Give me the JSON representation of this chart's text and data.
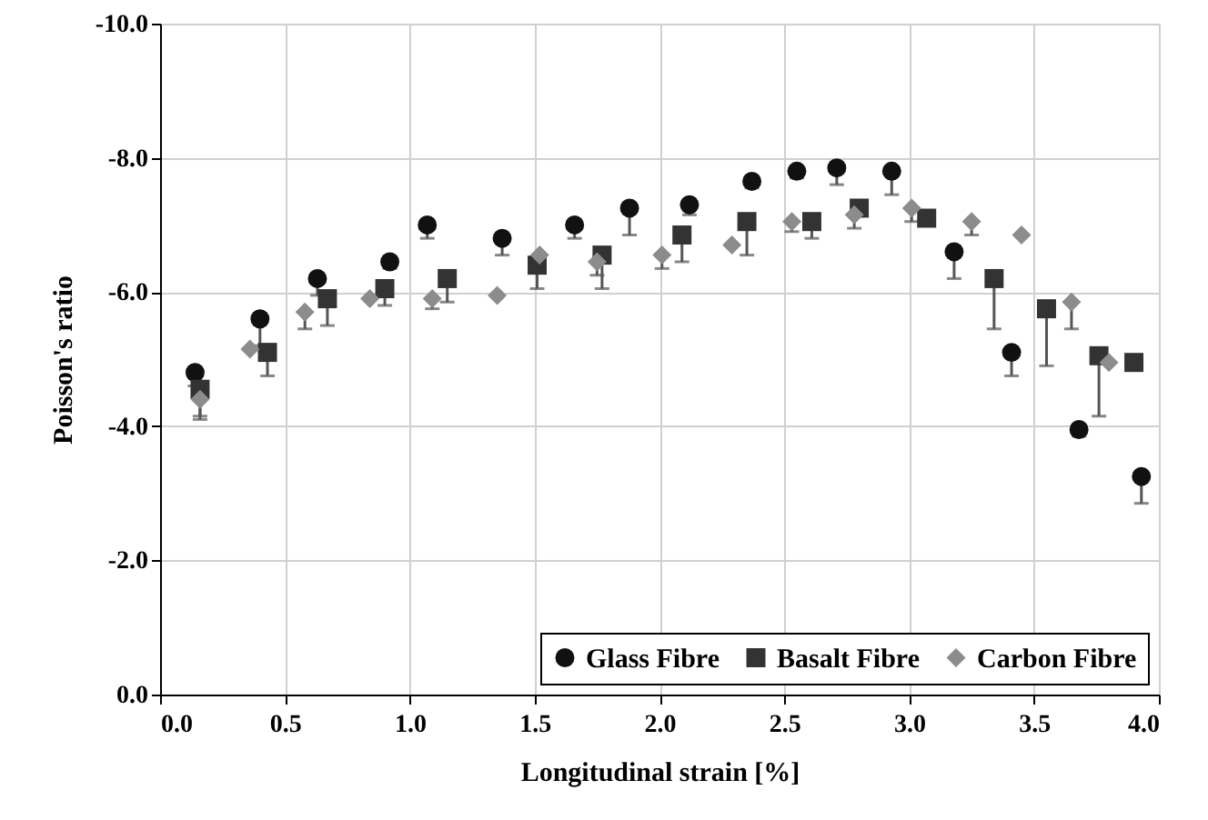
{
  "chart_data": {
    "type": "scatter",
    "xlabel": "Longitudinal strain [%]",
    "ylabel": "Poisson's ratio",
    "xlim": [
      0,
      4
    ],
    "xticks": [
      {
        "value": 0,
        "label": "0.0"
      },
      {
        "value": 0.5,
        "label": "0.5"
      },
      {
        "value": 1,
        "label": "1.0"
      },
      {
        "value": 1.5,
        "label": "1.5"
      },
      {
        "value": 2,
        "label": "2.0"
      },
      {
        "value": 2.5,
        "label": "2.5"
      },
      {
        "value": 3,
        "label": "3.0"
      },
      {
        "value": 3.5,
        "label": "3.5"
      },
      {
        "value": 4,
        "label": "4.0"
      }
    ],
    "ylim": [
      0,
      -10
    ],
    "yticks": [
      {
        "value": 0,
        "label": "0.0"
      },
      {
        "value": -2,
        "label": "-2.0"
      },
      {
        "value": -4,
        "label": "-4.0"
      },
      {
        "value": -6,
        "label": "-6.0"
      },
      {
        "value": -8,
        "label": "-8.0"
      },
      {
        "value": -10,
        "label": "-10.0"
      }
    ],
    "grid": true,
    "legend": "bottom right",
    "series": [
      {
        "name": "Glass Fibre",
        "color": "#111111",
        "marker": "circle",
        "x": [
          0.14,
          0.4,
          0.63,
          0.92,
          1.07,
          1.37,
          1.66,
          1.88,
          2.12,
          2.37,
          2.55,
          2.71,
          2.93,
          3.18,
          3.41,
          3.68,
          3.93
        ],
        "values": [
          -4.8,
          -5.6,
          -6.2,
          -6.45,
          -7.0,
          -6.8,
          -7.0,
          -7.25,
          -7.3,
          -7.65,
          -7.8,
          -7.85,
          -7.8,
          -6.6,
          -5.1,
          -3.95,
          -3.25
        ],
        "errors": [
          [
            -4.8,
            -4.6
          ],
          [
            -5.6,
            -5.2
          ],
          [
            -6.2,
            -5.95
          ],
          [
            -6.45,
            -6.35
          ],
          [
            -7.0,
            -6.8
          ],
          [
            -6.8,
            -6.55
          ],
          [
            -7.0,
            -6.8
          ],
          [
            -7.25,
            -6.85
          ],
          [
            -7.3,
            -7.15
          ],
          [
            -7.65,
            -7.55
          ],
          [
            -7.8,
            -7.7
          ],
          [
            -7.85,
            -7.6
          ],
          [
            -7.8,
            -7.45
          ],
          [
            -6.6,
            -6.2
          ],
          [
            -5.1,
            -4.75
          ],
          [
            -3.95,
            -3.85
          ],
          [
            -3.25,
            -2.85
          ]
        ]
      },
      {
        "name": "Basalt Fibre",
        "color": "#333333",
        "marker": "square",
        "x": [
          0.16,
          0.43,
          0.67,
          0.9,
          1.15,
          1.51,
          1.77,
          2.09,
          2.35,
          2.61,
          2.8,
          3.07,
          3.34,
          3.55,
          3.76,
          3.9
        ],
        "values": [
          -4.55,
          -5.1,
          -5.9,
          -6.05,
          -6.2,
          -6.4,
          -6.55,
          -6.85,
          -7.05,
          -7.05,
          -7.25,
          -7.1,
          -6.2,
          -5.75,
          -5.05,
          -4.95
        ],
        "errors": [
          [
            -4.55,
            -4.15
          ],
          [
            -5.1,
            -4.75
          ],
          [
            -5.9,
            -5.5
          ],
          [
            -6.05,
            -5.8
          ],
          [
            -6.2,
            -5.85
          ],
          [
            -6.4,
            -6.05
          ],
          [
            -6.55,
            -6.05
          ],
          [
            -6.85,
            -6.45
          ],
          [
            -7.05,
            -6.55
          ],
          [
            -7.05,
            -6.8
          ],
          [
            -7.25,
            -7.15
          ],
          null,
          [
            -6.2,
            -5.45
          ],
          [
            -5.75,
            -4.9
          ],
          [
            -5.05,
            -4.15
          ],
          null
        ]
      },
      {
        "name": "Carbon Fibre",
        "color": "#8c8c8c",
        "marker": "diamond",
        "x": [
          0.16,
          0.36,
          0.58,
          0.84,
          1.09,
          1.35,
          1.52,
          1.75,
          2.01,
          2.29,
          2.53,
          2.78,
          3.01,
          3.25,
          3.45,
          3.65,
          3.8
        ],
        "values": [
          -4.4,
          -5.15,
          -5.7,
          -5.9,
          -5.9,
          -5.95,
          -6.55,
          -6.45,
          -6.55,
          -6.7,
          -7.05,
          -7.15,
          -7.25,
          -7.05,
          -6.85,
          -5.85,
          -4.95
        ],
        "errors": [
          [
            -4.4,
            -4.1
          ],
          null,
          [
            -5.7,
            -5.45
          ],
          null,
          [
            -5.9,
            -5.75
          ],
          null,
          null,
          [
            -6.45,
            -6.25
          ],
          [
            -6.55,
            -6.35
          ],
          null,
          [
            -7.05,
            -6.9
          ],
          [
            -7.15,
            -6.95
          ],
          [
            -7.25,
            -7.05
          ],
          [
            -7.05,
            -6.85
          ],
          null,
          [
            -5.85,
            -5.45
          ],
          null
        ]
      }
    ]
  }
}
